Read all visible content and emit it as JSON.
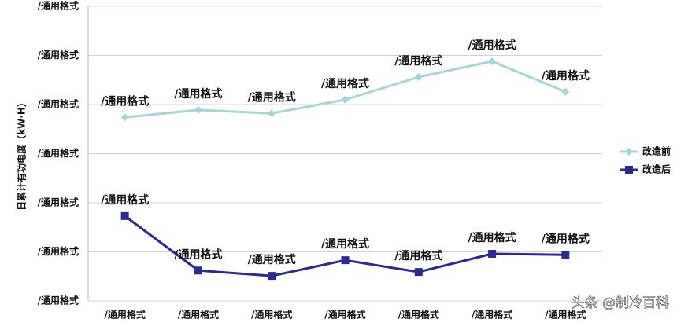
{
  "chart_data": {
    "type": "line",
    "y_label": "日累计有功电度（kW·H）",
    "categories": [
      "/通用格式",
      "/通用格式",
      "/通用格式",
      "/通用格式",
      "/通用格式",
      "/通用格式",
      "/通用格式"
    ],
    "series": [
      {
        "name": "改造前",
        "color": "#a6d6da",
        "marker": "diamond",
        "values": [
          374,
          389,
          382,
          410,
          456,
          488,
          426
        ],
        "value_labels": [
          "/通用格式",
          "/通用格式",
          "/通用格式",
          "/通用格式",
          "/通用格式",
          "/通用格式",
          "/通用格式"
        ]
      },
      {
        "name": "改造后",
        "color": "#2b2b96",
        "marker": "square",
        "values": [
          173,
          62,
          51,
          83,
          59,
          96,
          94
        ],
        "value_labels": [
          "/通用格式",
          "/通用格式",
          "/通用格式",
          "/通用格式",
          "/通用格式",
          "/通用格式",
          "/通用格式"
        ]
      }
    ],
    "ylim": [
      0,
      600
    ],
    "yticks": [
      {
        "value": 0,
        "label": "/通用格式"
      },
      {
        "value": 100,
        "label": "/通用格式"
      },
      {
        "value": 200,
        "label": "/通用格式"
      },
      {
        "value": 300,
        "label": "/通用格式"
      },
      {
        "value": 400,
        "label": "/通用格式"
      },
      {
        "value": 500,
        "label": "/通用格式"
      },
      {
        "value": 600,
        "label": "/通用格式"
      }
    ],
    "grid": true,
    "legend": "right"
  },
  "watermark": "头条 @制冷百科"
}
